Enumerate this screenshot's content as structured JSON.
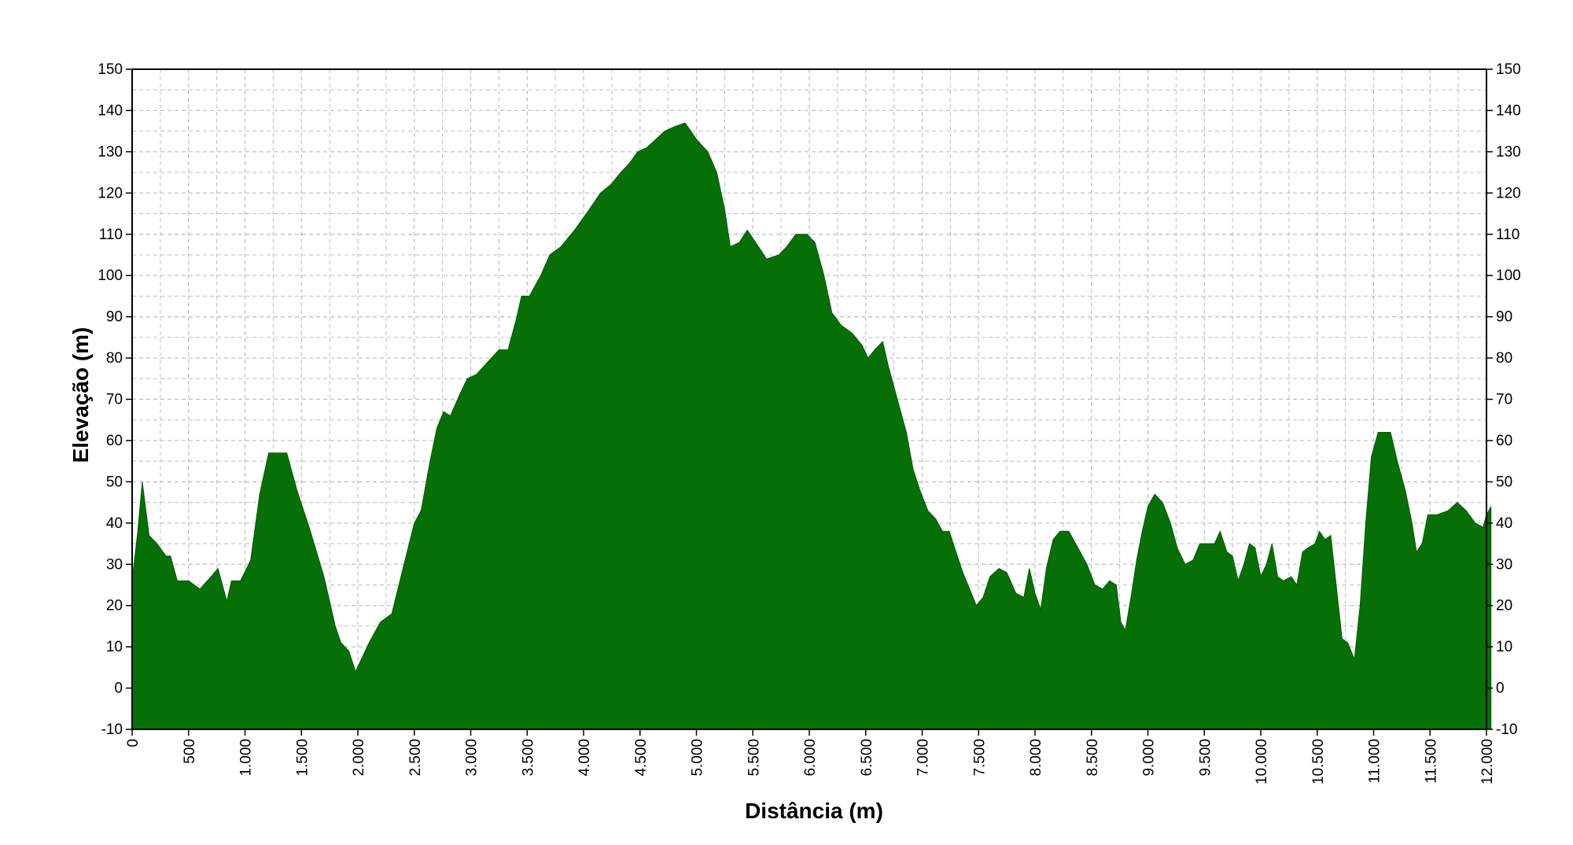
{
  "chart_data": {
    "type": "area",
    "title": "",
    "xlabel": "Distância (m)",
    "ylabel": "Elevação (m)",
    "xlim": [
      0,
      12000
    ],
    "ylim": [
      -10,
      150
    ],
    "grid": true,
    "colors": {
      "fill": "#067006",
      "grid": "#bdbdbd",
      "background": "#ffffff"
    },
    "x_ticks": [
      {
        "value": 0,
        "label": "0"
      },
      {
        "value": 500,
        "label": "500"
      },
      {
        "value": 1000,
        "label": "1.000"
      },
      {
        "value": 1500,
        "label": "1.500"
      },
      {
        "value": 2000,
        "label": "2.000"
      },
      {
        "value": 2500,
        "label": "2.500"
      },
      {
        "value": 3000,
        "label": "3.000"
      },
      {
        "value": 3500,
        "label": "3.500"
      },
      {
        "value": 4000,
        "label": "4.000"
      },
      {
        "value": 4500,
        "label": "4.500"
      },
      {
        "value": 5000,
        "label": "5.000"
      },
      {
        "value": 5500,
        "label": "5.500"
      },
      {
        "value": 6000,
        "label": "6.000"
      },
      {
        "value": 6500,
        "label": "6.500"
      },
      {
        "value": 7000,
        "label": "7.000"
      },
      {
        "value": 7500,
        "label": "7.500"
      },
      {
        "value": 8000,
        "label": "8.000"
      },
      {
        "value": 8500,
        "label": "8.500"
      },
      {
        "value": 9000,
        "label": "9.000"
      },
      {
        "value": 9500,
        "label": "9.500"
      },
      {
        "value": 10000,
        "label": "10.000"
      },
      {
        "value": 10500,
        "label": "10.500"
      },
      {
        "value": 11000,
        "label": "11.000"
      },
      {
        "value": 11500,
        "label": "11.500"
      },
      {
        "value": 12000,
        "label": "12.000"
      }
    ],
    "y_ticks": [
      {
        "value": -10,
        "label": "-10"
      },
      {
        "value": 0,
        "label": "0"
      },
      {
        "value": 10,
        "label": "10"
      },
      {
        "value": 20,
        "label": "20"
      },
      {
        "value": 30,
        "label": "30"
      },
      {
        "value": 40,
        "label": "40"
      },
      {
        "value": 50,
        "label": "50"
      },
      {
        "value": 60,
        "label": "60"
      },
      {
        "value": 70,
        "label": "70"
      },
      {
        "value": 80,
        "label": "80"
      },
      {
        "value": 90,
        "label": "90"
      },
      {
        "value": 100,
        "label": "100"
      },
      {
        "value": 110,
        "label": "110"
      },
      {
        "value": 120,
        "label": "120"
      },
      {
        "value": 130,
        "label": "130"
      },
      {
        "value": 140,
        "label": "140"
      },
      {
        "value": 150,
        "label": "150"
      }
    ],
    "series": [
      {
        "points": [
          [
            0,
            26
          ],
          [
            50,
            38
          ],
          [
            90,
            50
          ],
          [
            150,
            37
          ],
          [
            220,
            35
          ],
          [
            300,
            32
          ],
          [
            340,
            32
          ],
          [
            400,
            26
          ],
          [
            500,
            26
          ],
          [
            600,
            24
          ],
          [
            700,
            27
          ],
          [
            760,
            29
          ],
          [
            840,
            21
          ],
          [
            880,
            26
          ],
          [
            960,
            26
          ],
          [
            1050,
            31
          ],
          [
            1130,
            47
          ],
          [
            1210,
            57
          ],
          [
            1370,
            57
          ],
          [
            1460,
            48
          ],
          [
            1580,
            38
          ],
          [
            1700,
            27
          ],
          [
            1800,
            15
          ],
          [
            1850,
            11
          ],
          [
            1920,
            9
          ],
          [
            1980,
            4
          ],
          [
            2100,
            11
          ],
          [
            2200,
            16
          ],
          [
            2300,
            18
          ],
          [
            2400,
            29
          ],
          [
            2500,
            40
          ],
          [
            2560,
            43
          ],
          [
            2640,
            55
          ],
          [
            2700,
            63
          ],
          [
            2760,
            67
          ],
          [
            2820,
            66
          ],
          [
            2900,
            71
          ],
          [
            2970,
            75
          ],
          [
            3050,
            76
          ],
          [
            3150,
            79
          ],
          [
            3250,
            82
          ],
          [
            3330,
            82
          ],
          [
            3400,
            89
          ],
          [
            3450,
            95
          ],
          [
            3520,
            95
          ],
          [
            3620,
            100
          ],
          [
            3700,
            105
          ],
          [
            3800,
            107
          ],
          [
            3920,
            111
          ],
          [
            4050,
            116
          ],
          [
            4150,
            120
          ],
          [
            4240,
            122
          ],
          [
            4330,
            125
          ],
          [
            4400,
            127
          ],
          [
            4480,
            130
          ],
          [
            4560,
            131
          ],
          [
            4640,
            133
          ],
          [
            4720,
            135
          ],
          [
            4800,
            136
          ],
          [
            4900,
            137
          ],
          [
            5000,
            133
          ],
          [
            5100,
            130
          ],
          [
            5180,
            125
          ],
          [
            5250,
            116
          ],
          [
            5300,
            107
          ],
          [
            5380,
            108
          ],
          [
            5450,
            111
          ],
          [
            5550,
            107
          ],
          [
            5620,
            104
          ],
          [
            5730,
            105
          ],
          [
            5800,
            107
          ],
          [
            5880,
            110
          ],
          [
            5980,
            110
          ],
          [
            6050,
            108
          ],
          [
            6130,
            100
          ],
          [
            6200,
            91
          ],
          [
            6280,
            88
          ],
          [
            6380,
            86
          ],
          [
            6470,
            83
          ],
          [
            6520,
            80
          ],
          [
            6580,
            82
          ],
          [
            6650,
            84
          ],
          [
            6700,
            78
          ],
          [
            6780,
            70
          ],
          [
            6860,
            62
          ],
          [
            6920,
            53
          ],
          [
            6980,
            48
          ],
          [
            7050,
            43
          ],
          [
            7120,
            41
          ],
          [
            7180,
            38
          ],
          [
            7240,
            38
          ],
          [
            7300,
            33
          ],
          [
            7360,
            28
          ],
          [
            7420,
            24
          ],
          [
            7480,
            20
          ],
          [
            7540,
            22
          ],
          [
            7600,
            27
          ],
          [
            7680,
            29
          ],
          [
            7750,
            28
          ],
          [
            7830,
            23
          ],
          [
            7900,
            22
          ],
          [
            7950,
            29
          ],
          [
            8000,
            23
          ],
          [
            8050,
            19
          ],
          [
            8100,
            29
          ],
          [
            8160,
            36
          ],
          [
            8220,
            38
          ],
          [
            8300,
            38
          ],
          [
            8380,
            34
          ],
          [
            8460,
            30
          ],
          [
            8530,
            25
          ],
          [
            8600,
            24
          ],
          [
            8660,
            26
          ],
          [
            8720,
            25
          ],
          [
            8760,
            16
          ],
          [
            8800,
            14
          ],
          [
            8850,
            22
          ],
          [
            8900,
            31
          ],
          [
            8950,
            38
          ],
          [
            9000,
            44
          ],
          [
            9060,
            47
          ],
          [
            9130,
            45
          ],
          [
            9200,
            40
          ],
          [
            9260,
            34
          ],
          [
            9330,
            30
          ],
          [
            9400,
            31
          ],
          [
            9460,
            35
          ],
          [
            9540,
            35
          ],
          [
            9590,
            35
          ],
          [
            9640,
            38
          ],
          [
            9700,
            33
          ],
          [
            9750,
            32
          ],
          [
            9800,
            26
          ],
          [
            9850,
            30
          ],
          [
            9900,
            35
          ],
          [
            9950,
            34
          ],
          [
            10000,
            27
          ],
          [
            10050,
            30
          ],
          [
            10100,
            35
          ],
          [
            10150,
            27
          ],
          [
            10200,
            26
          ],
          [
            10270,
            27
          ],
          [
            10320,
            25
          ],
          [
            10370,
            33
          ],
          [
            10420,
            34
          ],
          [
            10480,
            35
          ],
          [
            10520,
            38
          ],
          [
            10570,
            36
          ],
          [
            10620,
            37
          ],
          [
            10680,
            22
          ],
          [
            10720,
            12
          ],
          [
            10770,
            11
          ],
          [
            10830,
            7
          ],
          [
            10880,
            20
          ],
          [
            10930,
            40
          ],
          [
            10980,
            56
          ],
          [
            11040,
            62
          ],
          [
            11150,
            62
          ],
          [
            11210,
            55
          ],
          [
            11280,
            48
          ],
          [
            11340,
            40
          ],
          [
            11380,
            33
          ],
          [
            11430,
            35
          ],
          [
            11480,
            42
          ],
          [
            11560,
            42
          ],
          [
            11660,
            43
          ],
          [
            11740,
            45
          ],
          [
            11820,
            43
          ],
          [
            11900,
            40
          ],
          [
            11970,
            39
          ],
          [
            12000,
            42
          ],
          [
            12040,
            44
          ]
        ]
      }
    ]
  }
}
